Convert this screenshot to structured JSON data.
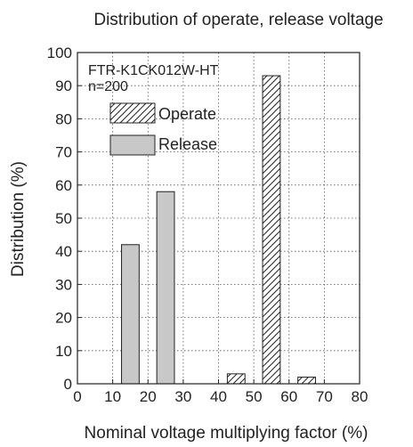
{
  "chart_data": {
    "type": "bar",
    "title": "Distribution of operate, release voltage",
    "xlabel": "Nominal voltage multiplying factor (%)",
    "ylabel": "Distribution (%)",
    "xlim": [
      0,
      80
    ],
    "ylim": [
      0,
      100
    ],
    "xticks": [
      0,
      10,
      20,
      30,
      40,
      50,
      60,
      70,
      80
    ],
    "yticks": [
      0,
      10,
      20,
      30,
      40,
      50,
      60,
      70,
      80,
      90,
      100
    ],
    "grid": true,
    "annotations": [
      "FTR-K1CK012W-HT",
      "n=200"
    ],
    "legend_position": "top-left",
    "series": [
      {
        "name": "Operate",
        "pattern": "hatched",
        "points": [
          {
            "x_from": 40,
            "x_to": 50,
            "value": 3
          },
          {
            "x_from": 50,
            "x_to": 60,
            "value": 93
          },
          {
            "x_from": 60,
            "x_to": 70,
            "value": 2
          }
        ]
      },
      {
        "name": "Release",
        "color": "#c8c8c8",
        "points": [
          {
            "x_from": 10,
            "x_to": 20,
            "value": 42
          },
          {
            "x_from": 20,
            "x_to": 30,
            "value": 58
          }
        ]
      }
    ]
  }
}
